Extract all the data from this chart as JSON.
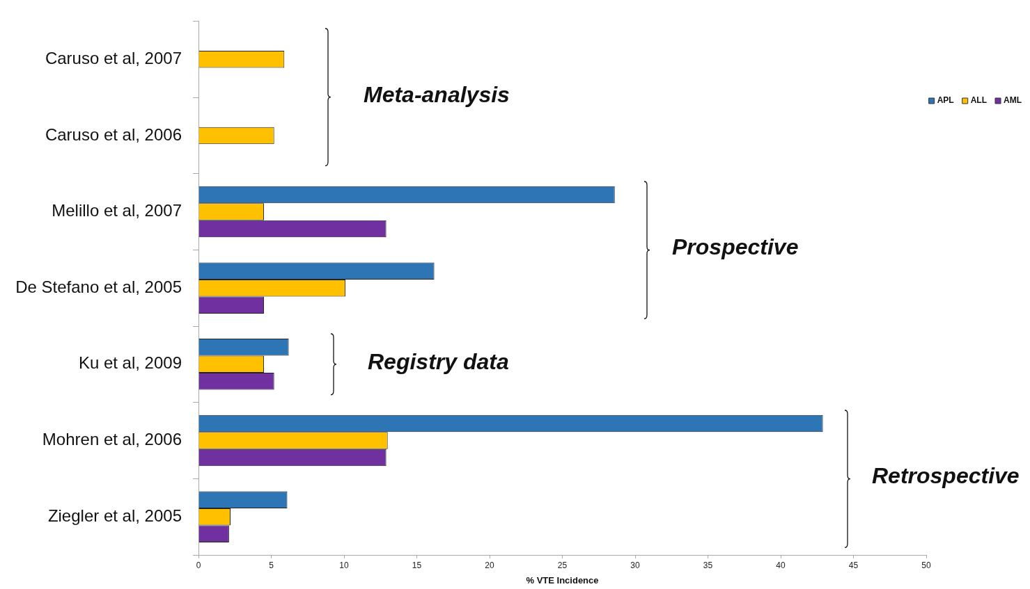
{
  "chart_data": {
    "type": "bar",
    "orientation": "horizontal",
    "xlabel": "% VTE Incidence",
    "categories": [
      "Caruso et al, 2007",
      "Caruso et al, 2006",
      "Melillo et al, 2007",
      "De Stefano et al, 2005",
      "Ku et al, 2009",
      "Mohren et al, 2006",
      "Ziegler et al, 2005"
    ],
    "series": [
      {
        "name": "APL",
        "color": "#2e75b6",
        "values": [
          null,
          null,
          28.6,
          16.2,
          6.2,
          42.9,
          6.1
        ]
      },
      {
        "name": "ALL",
        "color": "#ffc000",
        "values": [
          5.9,
          5.2,
          4.5,
          10.1,
          4.5,
          13.0,
          2.2
        ]
      },
      {
        "name": "AML",
        "color": "#7030a0",
        "values": [
          null,
          null,
          12.9,
          4.5,
          5.2,
          12.9,
          2.1
        ]
      }
    ],
    "xlim": [
      0,
      50
    ],
    "xticks": [
      0,
      5,
      10,
      15,
      20,
      25,
      30,
      35,
      40,
      45,
      50
    ],
    "grid": false,
    "legend": "top right",
    "annotations": [
      "Meta-analysis",
      "Prospective",
      "Registry data",
      "Retrospective"
    ]
  }
}
